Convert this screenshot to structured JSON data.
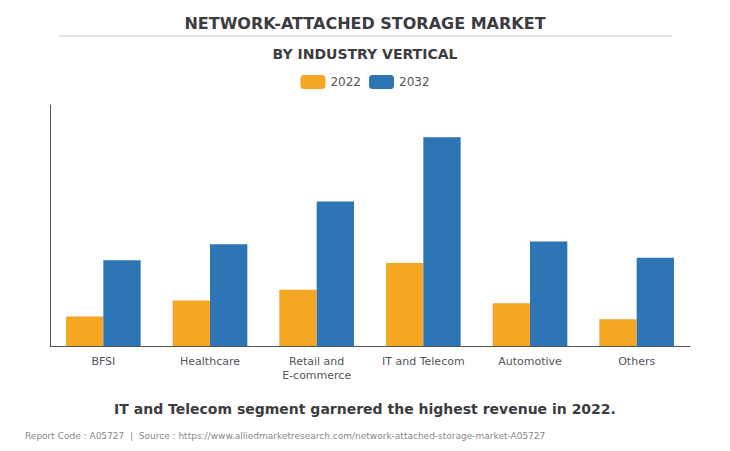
{
  "chart_data": {
    "type": "bar",
    "title": "NETWORK-ATTACHED STORAGE MARKET",
    "subtitle": "BY INDUSTRY VERTICAL",
    "categories": [
      "BFSI",
      "Healthcare",
      "Retail and\nE-commerce",
      "IT and Telecom",
      "Automotive",
      "Others"
    ],
    "series": [
      {
        "name": "2022",
        "color": "#F5A623",
        "values": [
          0.55,
          0.85,
          1.05,
          1.55,
          0.8,
          0.5
        ]
      },
      {
        "name": "2032",
        "color": "#2E75B6",
        "values": [
          1.6,
          1.9,
          2.7,
          3.9,
          1.95,
          1.65
        ]
      }
    ],
    "ylim": [
      0,
      4.5
    ],
    "grid": false,
    "tick_labels": "x",
    "legend": "top",
    "annotations": [
      "IT and Telecom segment garnered the highest revenue in 2022.",
      "Report Code : A05727  |  Source : https://www.alliedmarketresearch.com/network-attached-storage-market-A05727"
    ]
  }
}
